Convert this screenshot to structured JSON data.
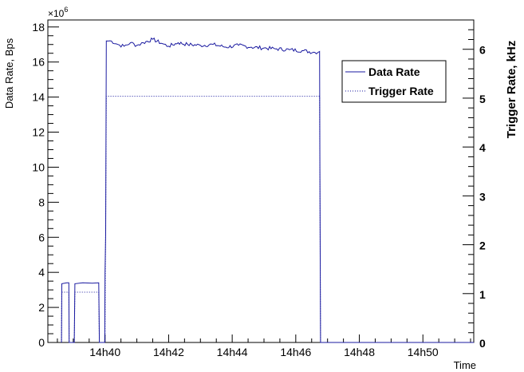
{
  "chart_data": {
    "type": "line",
    "xlabel": "Time",
    "ylabel_left": "Data Rate, Bps",
    "ylabel_right": "Trigger Rate, kHz",
    "left_axis_multiplier": "×10",
    "left_axis_exponent": "6",
    "x_range_minutes": [
      38.2,
      51.6
    ],
    "x_ticks": [
      {
        "value": 40,
        "label": "14h40"
      },
      {
        "value": 42,
        "label": "14h42"
      },
      {
        "value": 44,
        "label": "14h44"
      },
      {
        "value": 46,
        "label": "14h46"
      },
      {
        "value": 48,
        "label": "14h48"
      },
      {
        "value": 50,
        "label": "14h50"
      }
    ],
    "y_left_range": [
      0,
      18.4
    ],
    "y_left_ticks": [
      0,
      2,
      4,
      6,
      8,
      10,
      12,
      14,
      16,
      18
    ],
    "y_right_range": [
      0,
      6.6
    ],
    "y_right_ticks": [
      0,
      1,
      2,
      3,
      4,
      5,
      6
    ],
    "legend_position": "top-right",
    "series": [
      {
        "name": "Data Rate",
        "axis": "left",
        "color": "#1a1aa0",
        "style": "solid",
        "points": [
          [
            38.63,
            0.0
          ],
          [
            38.64,
            3.35
          ],
          [
            38.8,
            3.4
          ],
          [
            38.86,
            3.4
          ],
          [
            38.87,
            0.0
          ],
          [
            39.03,
            0.0
          ],
          [
            39.05,
            3.35
          ],
          [
            39.3,
            3.4
          ],
          [
            39.6,
            3.38
          ],
          [
            39.8,
            3.4
          ],
          [
            39.82,
            0.0
          ],
          [
            39.99,
            0.0
          ],
          [
            40.0,
            4.0
          ],
          [
            40.02,
            6.2
          ],
          [
            40.04,
            17.2
          ],
          [
            40.2,
            17.2
          ],
          [
            40.4,
            17.0
          ],
          [
            40.6,
            16.9
          ],
          [
            40.8,
            17.1
          ],
          [
            41.0,
            16.95
          ],
          [
            41.2,
            17.1
          ],
          [
            41.5,
            17.3
          ],
          [
            41.8,
            17.05
          ],
          [
            42.0,
            16.9
          ],
          [
            42.3,
            17.1
          ],
          [
            42.6,
            17.0
          ],
          [
            43.0,
            16.95
          ],
          [
            43.4,
            17.0
          ],
          [
            43.8,
            16.85
          ],
          [
            44.2,
            16.95
          ],
          [
            44.6,
            16.85
          ],
          [
            45.0,
            16.8
          ],
          [
            45.4,
            16.75
          ],
          [
            45.8,
            16.7
          ],
          [
            46.2,
            16.65
          ],
          [
            46.6,
            16.55
          ],
          [
            46.75,
            16.6
          ],
          [
            46.76,
            9.7
          ],
          [
            46.78,
            0.0
          ],
          [
            51.6,
            0.0
          ]
        ]
      },
      {
        "name": "Trigger Rate",
        "axis": "right",
        "color": "#1a1aa0",
        "style": "dotted",
        "points": [
          [
            38.63,
            0.0
          ],
          [
            38.64,
            1.03
          ],
          [
            38.86,
            1.03
          ],
          [
            38.87,
            0.0
          ],
          [
            39.03,
            0.0
          ],
          [
            39.05,
            1.03
          ],
          [
            39.8,
            1.03
          ],
          [
            39.82,
            0.0
          ],
          [
            40.0,
            0.0
          ],
          [
            40.04,
            5.04
          ],
          [
            46.75,
            5.04
          ],
          [
            46.78,
            0.0
          ],
          [
            51.6,
            0.0
          ]
        ]
      }
    ]
  }
}
